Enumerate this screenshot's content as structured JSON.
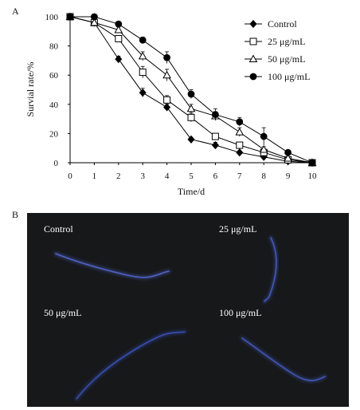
{
  "panels": {
    "a": {
      "label": "A"
    },
    "b": {
      "label": "B"
    }
  },
  "chart_data": {
    "type": "line",
    "title": "",
    "xlabel": "Time/d",
    "ylabel": "Survial rate/%",
    "xlim": [
      0,
      10
    ],
    "ylim": [
      0,
      100
    ],
    "x_ticks": [
      0,
      1,
      2,
      3,
      4,
      5,
      6,
      7,
      8,
      9,
      10
    ],
    "y_ticks": [
      0,
      20,
      40,
      60,
      80,
      100
    ],
    "grid": false,
    "legend_position": "top-right",
    "series": [
      {
        "name": "Control",
        "marker": "diamond-filled",
        "x": [
          0,
          1,
          2,
          3,
          4,
          5,
          6,
          7,
          8,
          9,
          10
        ],
        "y": [
          100,
          96,
          71,
          48,
          38,
          16,
          12,
          7,
          4,
          1,
          0
        ],
        "err": [
          0,
          1,
          2,
          3,
          2,
          1,
          2,
          1,
          1,
          1,
          0
        ]
      },
      {
        "name": "25 μg/mL",
        "marker": "square-open",
        "x": [
          0,
          1,
          2,
          3,
          4,
          5,
          6,
          7,
          8,
          9,
          10
        ],
        "y": [
          100,
          96,
          85,
          62,
          43,
          31,
          18,
          12,
          7,
          2,
          0
        ],
        "err": [
          0,
          1,
          2,
          4,
          3,
          3,
          2,
          2,
          2,
          1,
          0
        ]
      },
      {
        "name": "50 μg/mL",
        "marker": "triangle-open",
        "x": [
          0,
          1,
          2,
          3,
          4,
          5,
          6,
          7,
          8,
          9,
          10
        ],
        "y": [
          100,
          96,
          91,
          73,
          60,
          37,
          32,
          21,
          9,
          3,
          0
        ],
        "err": [
          0,
          1,
          2,
          3,
          4,
          3,
          3,
          3,
          2,
          1,
          0
        ]
      },
      {
        "name": "100 μg/mL",
        "marker": "circle-filled",
        "x": [
          0,
          1,
          2,
          3,
          4,
          5,
          6,
          7,
          8,
          9,
          10
        ],
        "y": [
          100,
          100,
          95,
          84,
          72,
          47,
          33,
          28,
          18,
          7,
          0
        ],
        "err": [
          0,
          1,
          1,
          2,
          4,
          3,
          4,
          3,
          6,
          1,
          0
        ]
      }
    ]
  },
  "micrographs": [
    {
      "label": "Control",
      "glow_color": "#5a6de0"
    },
    {
      "label": "25 μg/mL",
      "glow_color": "#4a63d8"
    },
    {
      "label": "50 μg/mL",
      "glow_color": "#3f56c8"
    },
    {
      "label": "100 μg/mL",
      "glow_color": "#4a60d0"
    }
  ],
  "colors": {
    "series": "#000000",
    "micrograph_background": "#16181a"
  }
}
